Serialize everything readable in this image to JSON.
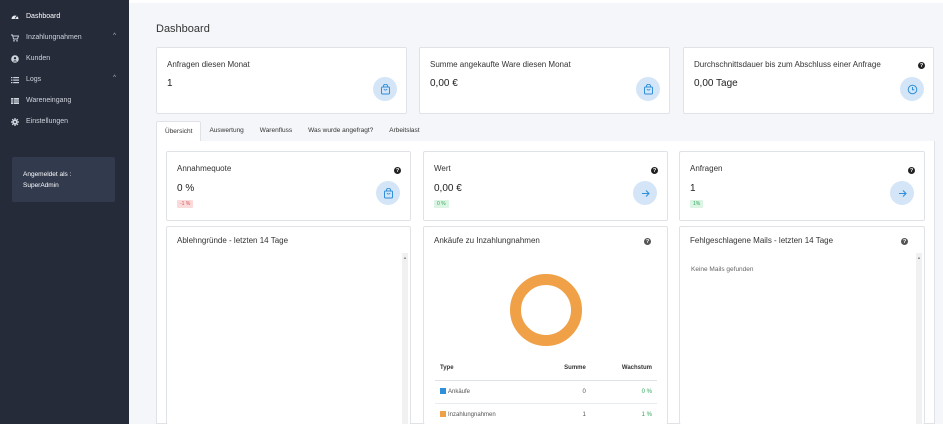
{
  "sidebar": {
    "items": [
      {
        "label": "Dashboard",
        "icon": "dashboard-icon"
      },
      {
        "label": "Inzahlungnahmen",
        "icon": "cart-icon"
      },
      {
        "label": "Kunden",
        "icon": "user-icon"
      },
      {
        "label": "Logs",
        "icon": "list-icon"
      },
      {
        "label": "Wareneingang",
        "icon": "table-icon"
      },
      {
        "label": "Einstellungen",
        "icon": "gear-icon"
      }
    ],
    "login_label": "Angemeldet als :",
    "login_user": "SuperAdmin"
  },
  "page_title": "Dashboard",
  "stats": [
    {
      "title": "Anfragen diesen Monat",
      "value": "1"
    },
    {
      "title": "Summe angekaufte Ware diesen Monat",
      "value": "0,00 €"
    },
    {
      "title": "Durchschnittsdauer bis zum Abschluss einer Anfrage",
      "value": "0,00 Tage"
    }
  ],
  "tabs": [
    "Übersicht",
    "Auswertung",
    "Warenfluss",
    "Was wurde angefragt?",
    "Arbeitslast"
  ],
  "kpis": [
    {
      "title": "Annahmequote",
      "value": "0 %",
      "badge": "-1 %"
    },
    {
      "title": "Wert",
      "value": "0,00 €",
      "badge": "0 %"
    },
    {
      "title": "Anfragen",
      "value": "1",
      "badge": "1%"
    }
  ],
  "panels": {
    "reasons_title": "Ablehngründe - letzten 14 Tage",
    "purchases_title": "Ankäufe zu Inzahlungnahmen",
    "mails_title": "Fehlgeschlagene Mails - letzten 14 Tage",
    "mails_empty": "Keine Mails gefunden"
  },
  "purchases_table": {
    "headers": [
      "Type",
      "Summe",
      "Wachstum"
    ],
    "rows": [
      {
        "type": "Ankäufe",
        "sum": "0",
        "growth": "0 %",
        "color": "#2f8fd8"
      },
      {
        "type": "Inzahlungnahmen",
        "sum": "1",
        "growth": "1 %",
        "color": "#f0a046"
      }
    ]
  },
  "chart_data": {
    "type": "pie",
    "categories": [
      "Ankäufe",
      "Inzahlungnahmen"
    ],
    "values": [
      0,
      1
    ],
    "colors": [
      "#2f8fd8",
      "#f0a046"
    ]
  },
  "help_glyph": "?",
  "colors": {
    "sidebar": "#262b3a",
    "accent": "#2f8fd8",
    "donut": "#f0a046"
  }
}
